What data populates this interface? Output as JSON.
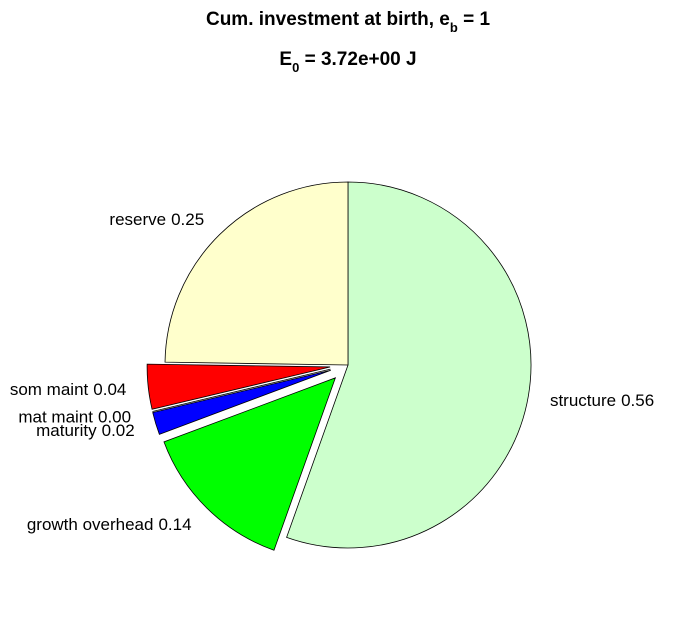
{
  "chart_data": {
    "type": "pie",
    "title": [
      "Cum. investment at birth, e",
      "b",
      " = 1"
    ],
    "subtitle": [
      "E",
      "0",
      " = 3.72e+00 J"
    ],
    "categories": [
      "structure",
      "growth overhead",
      "maturity",
      "mat maint",
      "som maint",
      "reserve"
    ],
    "values": [
      0.56,
      0.14,
      0.02,
      0.0,
      0.04,
      0.25
    ],
    "value_labels": [
      "0.56",
      "0.14",
      "0.02",
      "0.00",
      "0.04",
      "0.25"
    ],
    "colors": [
      "#ccffcc",
      "#00ff00",
      "#0000ff",
      "#ff00ff",
      "#ff0000",
      "#ffffcc"
    ],
    "explode": [
      false,
      true,
      true,
      true,
      true,
      false
    ]
  }
}
